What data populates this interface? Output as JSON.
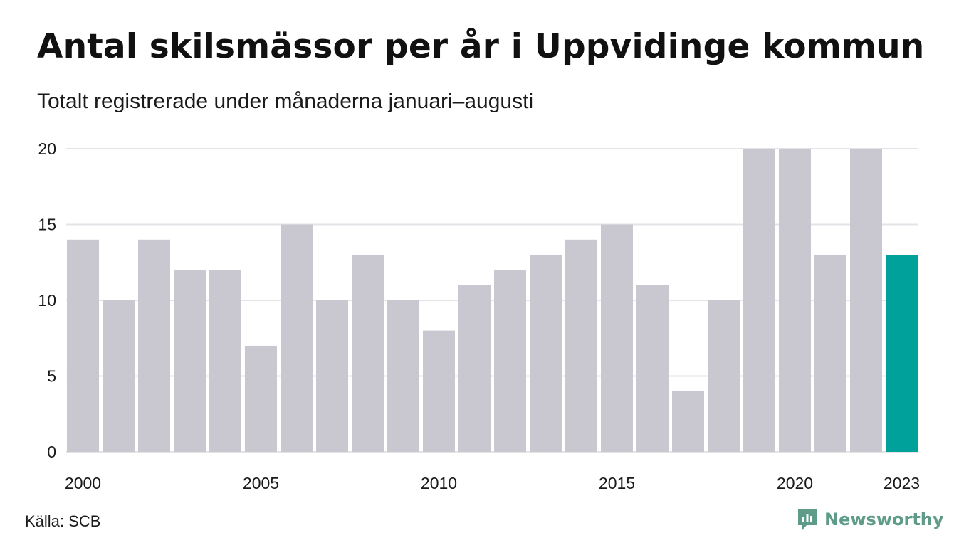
{
  "header": {
    "title": "Antal skilsmässor per år i Uppvidinge kommun",
    "subtitle": "Totalt registrerade under månaderna januari–augusti"
  },
  "footer": {
    "source": "Källa: SCB",
    "brand": "Newsworthy",
    "brand_icon": "newsworthy-logo-icon"
  },
  "colors": {
    "bar": "#c9c8d0",
    "highlight": "#00a19a",
    "grid": "#e4e4e8",
    "brand": "#5e9b88"
  },
  "chart_data": {
    "type": "bar",
    "title": "Antal skilsmässor per år i Uppvidinge kommun",
    "subtitle": "Totalt registrerade under månaderna januari–augusti",
    "categories": [
      "2000",
      "2001",
      "2002",
      "2003",
      "2004",
      "2005",
      "2006",
      "2007",
      "2008",
      "2009",
      "2010",
      "2011",
      "2012",
      "2013",
      "2014",
      "2015",
      "2016",
      "2017",
      "2018",
      "2019",
      "2020",
      "2021",
      "2022",
      "2023"
    ],
    "values": [
      14,
      10,
      14,
      12,
      12,
      7,
      15,
      10,
      13,
      10,
      8,
      11,
      12,
      13,
      14,
      15,
      11,
      4,
      10,
      20,
      20,
      13,
      20,
      13
    ],
    "highlight_category": "2023",
    "x_tick_labels": [
      "2000",
      "2005",
      "2010",
      "2015",
      "2020",
      "2023"
    ],
    "y_ticks": [
      0,
      5,
      10,
      15,
      20
    ],
    "ylim": [
      0,
      20
    ],
    "xlabel": "",
    "ylabel": "",
    "grid": true,
    "legend": false
  }
}
